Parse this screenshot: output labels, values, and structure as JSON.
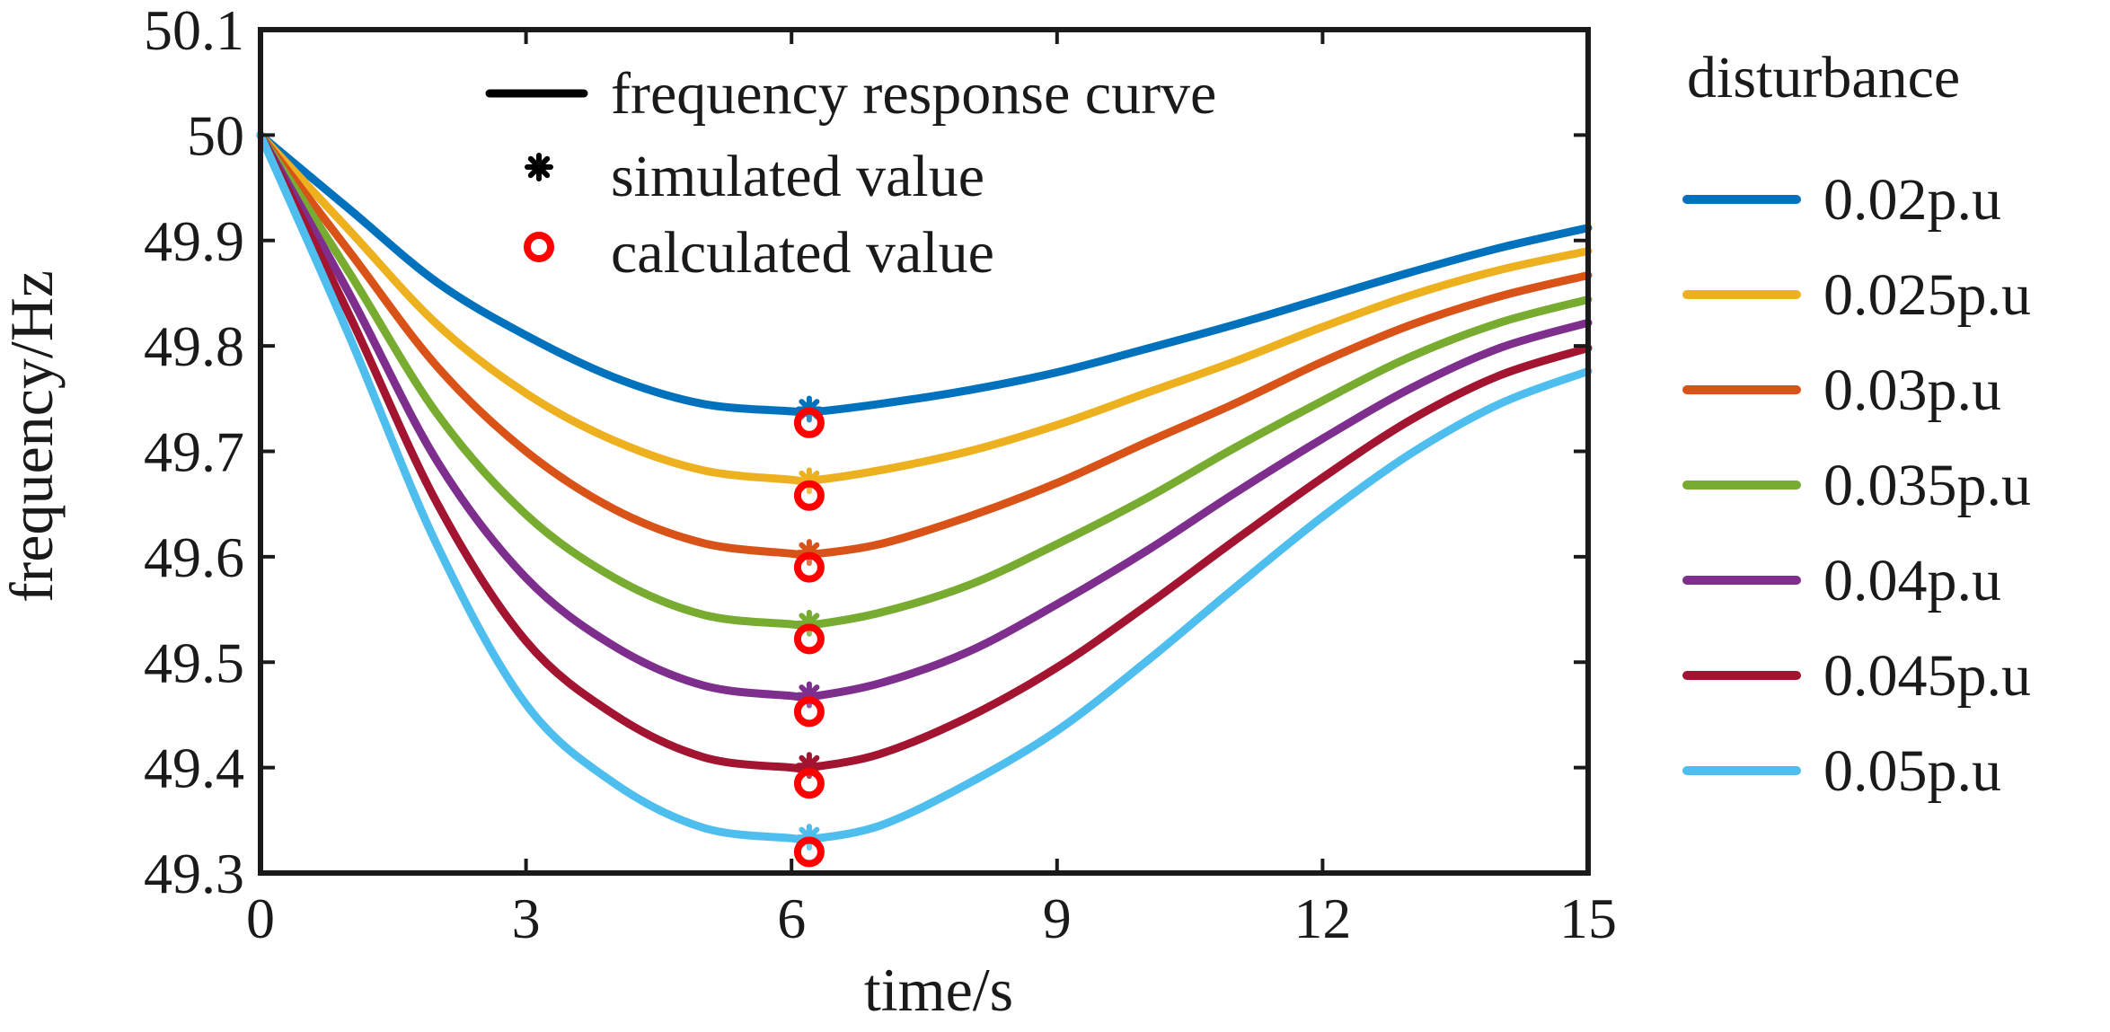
{
  "chart_data": {
    "type": "line",
    "xlabel": "time/s",
    "ylabel": "frequency/Hz",
    "xlim": [
      0,
      15
    ],
    "ylim": [
      49.3,
      50.1
    ],
    "xticks": [
      "0",
      "3",
      "6",
      "9",
      "12",
      "15"
    ],
    "yticks": [
      "49.3",
      "49.4",
      "49.5",
      "49.6",
      "49.7",
      "49.8",
      "49.9",
      "50",
      "50.1"
    ],
    "grid": false,
    "marker_legend": {
      "entries": [
        {
          "label": "frequency response curve",
          "symbol": "line",
          "color": "#000000"
        },
        {
          "label": "simulated value",
          "symbol": "asterisk",
          "color": "#000000"
        },
        {
          "label": "calculated value",
          "symbol": "circle",
          "color": "#ff0000"
        }
      ],
      "placement": "top-center"
    },
    "series_legend": {
      "title": "disturbance",
      "placement": "right"
    },
    "series": [
      {
        "name": "0.02p.u",
        "color": "#0072bd",
        "x": [
          0,
          1,
          2,
          3,
          4,
          5,
          6,
          6.2,
          7,
          8,
          9,
          10,
          11,
          12,
          13,
          14,
          15
        ],
        "y": [
          50.0,
          49.93,
          49.86,
          49.81,
          49.77,
          49.745,
          49.738,
          49.737,
          49.745,
          49.758,
          49.775,
          49.797,
          49.82,
          49.845,
          49.87,
          49.893,
          49.912
        ],
        "nadir": {
          "t": 6.2,
          "simulated": 49.74,
          "calculated": 49.727
        }
      },
      {
        "name": "0.025p.u",
        "color": "#edb120",
        "x": [
          0,
          1,
          2,
          3,
          4,
          5,
          6,
          6.2,
          7,
          8,
          9,
          10,
          11,
          12,
          13,
          14,
          15
        ],
        "y": [
          50.0,
          49.91,
          49.82,
          49.755,
          49.71,
          49.682,
          49.673,
          49.672,
          49.682,
          49.7,
          49.725,
          49.755,
          49.785,
          49.818,
          49.848,
          49.872,
          49.89
        ],
        "nadir": {
          "t": 6.2,
          "simulated": 49.672,
          "calculated": 49.658
        }
      },
      {
        "name": "0.03p.u",
        "color": "#d95319",
        "x": [
          0,
          1,
          2,
          3,
          4,
          5,
          6,
          6.2,
          7,
          8,
          9,
          10,
          11,
          12,
          13,
          14,
          15
        ],
        "y": [
          50.0,
          49.89,
          49.78,
          49.7,
          49.645,
          49.613,
          49.603,
          49.602,
          49.612,
          49.638,
          49.67,
          49.708,
          49.745,
          49.785,
          49.82,
          49.847,
          49.867
        ],
        "nadir": {
          "t": 6.2,
          "simulated": 49.604,
          "calculated": 49.59
        }
      },
      {
        "name": "0.035p.u",
        "color": "#77ac30",
        "x": [
          0,
          1,
          2,
          3,
          4,
          5,
          6,
          6.2,
          7,
          8,
          9,
          10,
          11,
          12,
          13,
          14,
          15
        ],
        "y": [
          50.0,
          49.87,
          49.735,
          49.64,
          49.58,
          49.545,
          49.536,
          49.535,
          49.547,
          49.573,
          49.612,
          49.655,
          49.703,
          49.748,
          49.79,
          49.822,
          49.844
        ],
        "nadir": {
          "t": 6.2,
          "simulated": 49.537,
          "calculated": 49.522
        }
      },
      {
        "name": "0.04p.u",
        "color": "#7e2f8e",
        "x": [
          0,
          1,
          2,
          3,
          4,
          5,
          6,
          6.2,
          7,
          8,
          9,
          10,
          11,
          12,
          13,
          14,
          15
        ],
        "y": [
          50.0,
          49.85,
          49.69,
          49.58,
          49.515,
          49.478,
          49.468,
          49.467,
          49.48,
          49.51,
          49.555,
          49.605,
          49.66,
          49.712,
          49.76,
          49.798,
          49.822
        ],
        "nadir": {
          "t": 6.2,
          "simulated": 49.469,
          "calculated": 49.453
        }
      },
      {
        "name": "0.045p.u",
        "color": "#a2142f",
        "x": [
          0,
          1,
          2,
          3,
          4,
          5,
          6,
          6.2,
          7,
          8,
          9,
          10,
          11,
          12,
          13,
          14,
          15
        ],
        "y": [
          50.0,
          49.83,
          49.65,
          49.52,
          49.45,
          49.41,
          49.4,
          49.4,
          49.413,
          49.448,
          49.495,
          49.553,
          49.615,
          49.675,
          49.73,
          49.772,
          49.798
        ],
        "nadir": {
          "t": 6.2,
          "simulated": 49.402,
          "calculated": 49.385
        }
      },
      {
        "name": "0.05p.u",
        "color": "#4dbeee",
        "x": [
          0,
          1,
          2,
          3,
          4,
          5,
          6,
          6.2,
          7,
          8,
          9,
          10,
          11,
          12,
          13,
          14,
          15
        ],
        "y": [
          50.0,
          49.81,
          49.61,
          49.46,
          49.385,
          49.343,
          49.333,
          49.332,
          49.345,
          49.385,
          49.435,
          49.5,
          49.57,
          49.638,
          49.698,
          49.745,
          49.776
        ],
        "nadir": {
          "t": 6.2,
          "simulated": 49.334,
          "calculated": 49.32
        }
      }
    ]
  }
}
